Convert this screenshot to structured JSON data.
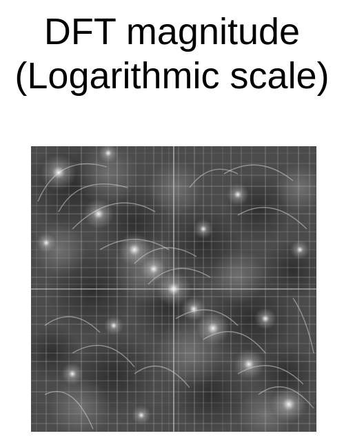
{
  "title": {
    "line1": "DFT magnitude",
    "line2": "(Logarithmic scale)"
  },
  "image": {
    "kind": "grayscale DFT magnitude spectrum",
    "colormap": "gray",
    "background": "#4a4a4a"
  }
}
